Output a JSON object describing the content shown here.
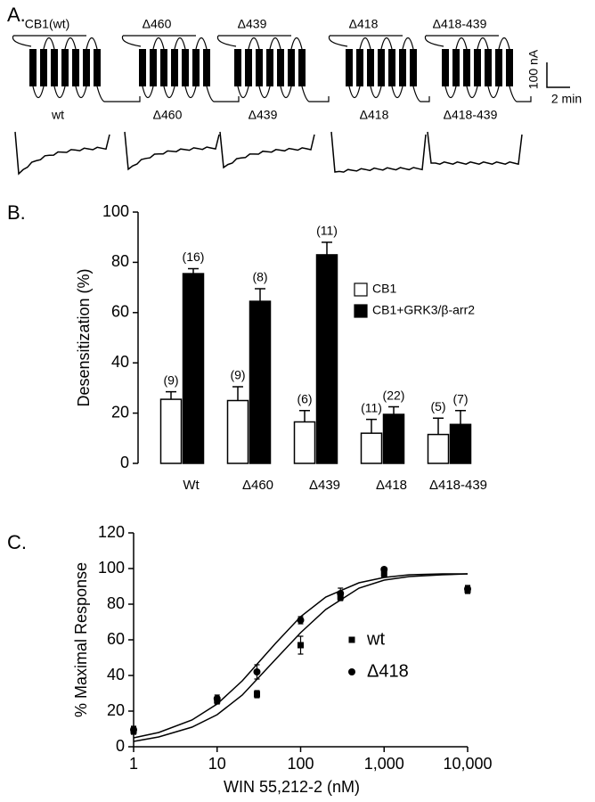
{
  "panel_a": {
    "label": "A.",
    "constructs": [
      "CB1(wt)",
      "Δ460",
      "Δ439",
      "Δ418",
      "Δ418-439"
    ],
    "trace_labels": [
      "wt",
      "Δ460",
      "Δ439",
      "Δ418",
      "Δ418-439"
    ],
    "scale_bar": {
      "current": "100 nA",
      "time": "2 min"
    }
  },
  "chart_data": [
    {
      "type": "bar",
      "label": "B.",
      "ylabel": "Desensitization (%)",
      "categories": [
        "Wt",
        "Δ460",
        "Δ439",
        "Δ418",
        "Δ418-439"
      ],
      "series": [
        {
          "name": "CB1",
          "color": "#ffffff",
          "values": [
            25.5,
            25,
            16.5,
            12,
            11.5
          ],
          "errors": [
            3,
            5.5,
            4.5,
            5.5,
            6.5
          ],
          "n_labels": [
            "(9)",
            "(9)",
            "(6)",
            "(11)",
            "(5)"
          ]
        },
        {
          "name": "CB1+GRK3/β-arr2",
          "color": "#000000",
          "values": [
            75.5,
            64.5,
            83,
            19.5,
            15.5
          ],
          "errors": [
            2,
            5,
            5,
            3,
            5.5
          ],
          "n_labels": [
            "(16)",
            "(8)",
            "(11)",
            "(22)",
            "(7)"
          ]
        }
      ],
      "ylim": [
        0,
        100
      ],
      "yticks": [
        0,
        20,
        40,
        60,
        80,
        100
      ],
      "legend": "right"
    },
    {
      "type": "scatter",
      "label": "C.",
      "xlabel": "WIN 55,212-2 (nM)",
      "ylabel": "% Maximal Response",
      "xscale": "log",
      "xlim": [
        1,
        10000
      ],
      "xticks": [
        1,
        10,
        100,
        {
          "value": 1000,
          "label": "1,000"
        },
        {
          "value": 10000,
          "label": "10,000"
        }
      ],
      "ylim": [
        0,
        120
      ],
      "yticks": [
        0,
        20,
        40,
        60,
        80,
        100,
        120
      ],
      "legend": "right",
      "series": [
        {
          "name": "wt",
          "marker": "square",
          "color": "#000000",
          "x": [
            1,
            10,
            30,
            100,
            300,
            1000,
            10000
          ],
          "values": [
            9,
            26,
            29.5,
            57,
            84,
            97,
            88
          ],
          "errors": [
            2,
            2,
            2,
            5,
            2,
            2,
            2
          ]
        },
        {
          "name": "Δ418",
          "marker": "circle",
          "color": "#000000",
          "x": [
            1,
            10,
            30,
            100,
            300,
            1000,
            10000
          ],
          "values": [
            9.5,
            27,
            42,
            71,
            86,
            99.5,
            88.5
          ],
          "errors": [
            2,
            2,
            4,
            2,
            3,
            1,
            2
          ]
        },
        {
          "marker": "line",
          "color": "#000000",
          "x": [
            1,
            2,
            5,
            10,
            20,
            50,
            100,
            200,
            500,
            1000,
            2000,
            5000,
            10000
          ],
          "values": [
            5,
            8,
            15,
            24,
            37,
            58,
            73,
            84,
            92,
            95,
            96.5,
            97,
            97
          ]
        },
        {
          "marker": "line",
          "color": "#000000",
          "x": [
            1,
            2,
            5,
            10,
            20,
            50,
            100,
            200,
            500,
            1000,
            2000,
            5000,
            10000
          ],
          "values": [
            3,
            5.5,
            11,
            18,
            29,
            49,
            64,
            77,
            89,
            93.5,
            95.5,
            96.5,
            97
          ]
        }
      ]
    }
  ]
}
